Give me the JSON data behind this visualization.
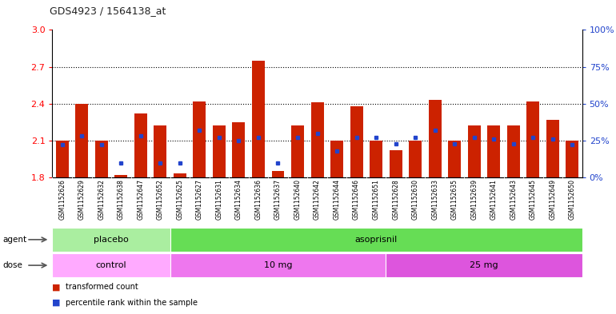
{
  "title": "GDS4923 / 1564138_at",
  "samples": [
    "GSM1152626",
    "GSM1152629",
    "GSM1152632",
    "GSM1152638",
    "GSM1152647",
    "GSM1152652",
    "GSM1152625",
    "GSM1152627",
    "GSM1152631",
    "GSM1152634",
    "GSM1152636",
    "GSM1152637",
    "GSM1152640",
    "GSM1152642",
    "GSM1152644",
    "GSM1152646",
    "GSM1152651",
    "GSM1152628",
    "GSM1152630",
    "GSM1152633",
    "GSM1152635",
    "GSM1152639",
    "GSM1152641",
    "GSM1152643",
    "GSM1152645",
    "GSM1152649",
    "GSM1152650"
  ],
  "red_values": [
    2.1,
    2.4,
    2.1,
    1.82,
    2.32,
    2.22,
    1.83,
    2.42,
    2.22,
    2.25,
    2.75,
    1.85,
    2.22,
    2.41,
    2.1,
    2.38,
    2.1,
    2.02,
    2.1,
    2.43,
    2.1,
    2.22,
    2.22,
    2.22,
    2.42,
    2.27,
    2.1
  ],
  "blue_percentiles": [
    22,
    28,
    22,
    10,
    28,
    10,
    10,
    32,
    27,
    25,
    27,
    10,
    27,
    30,
    18,
    27,
    27,
    23,
    27,
    32,
    23,
    27,
    26,
    23,
    27,
    26,
    22
  ],
  "y_min": 1.8,
  "y_max": 3.0,
  "left_ticks": [
    1.8,
    2.1,
    2.4,
    2.7,
    3.0
  ],
  "dotted_lines": [
    2.1,
    2.4,
    2.7
  ],
  "right_ticks_pct": [
    0,
    25,
    50,
    75,
    100
  ],
  "bar_color": "#CC2200",
  "blue_color": "#2244CC",
  "label_bg": "#CCCCCC",
  "agent_groups": [
    {
      "label": "placebo",
      "start": 0,
      "end": 6,
      "color": "#AAEEA0"
    },
    {
      "label": "asoprisnil",
      "start": 6,
      "end": 27,
      "color": "#66DD55"
    }
  ],
  "dose_groups": [
    {
      "label": "control",
      "start": 0,
      "end": 6,
      "color": "#FFAAFF"
    },
    {
      "label": "10 mg",
      "start": 6,
      "end": 17,
      "color": "#EE77EE"
    },
    {
      "label": "25 mg",
      "start": 17,
      "end": 27,
      "color": "#DD55DD"
    }
  ],
  "legend_items": [
    {
      "label": "transformed count",
      "color": "#CC2200"
    },
    {
      "label": "percentile rank within the sample",
      "color": "#2244CC"
    }
  ]
}
